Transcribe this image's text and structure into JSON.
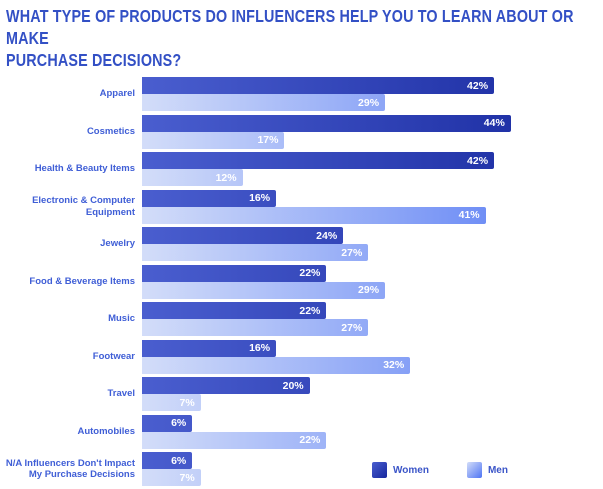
{
  "page": {
    "background": "#ffffff"
  },
  "title_lines": [
    "WHAT TYPE OF PRODUCTS DO INFLUENCERS HELP YOU TO LEARN ABOUT OR MAKE",
    "PURCHASE DECISIONS?"
  ],
  "colors": {
    "title_text": "#3350c5",
    "category_text": "#3f5ed6",
    "legend_text": "#3b55c8",
    "value_text": "#ffffff",
    "women_bar_start": "#4a5ecf",
    "women_bar_end": "#16279d",
    "men_bar_start": "#d3ddf9",
    "men_bar_end": "#4e74f4"
  },
  "chart_data": {
    "type": "bar",
    "orientation": "horizontal",
    "title": "WHAT TYPE OF PRODUCTS DO INFLUENCERS HELP YOU TO LEARN ABOUT OR MAKE PURCHASE DECISIONS?",
    "categories": [
      "Apparel",
      "Cosmetics",
      "Health & Beauty Items",
      "Electronic & Computer Equipment",
      "Jewelry",
      "Food & Beverage Items",
      "Music",
      "Footwear",
      "Travel",
      "Automobiles",
      "N/A Influencers Don't Impact My Purchase Decisions"
    ],
    "series": [
      {
        "name": "Women",
        "color_start": "#4a5ecf",
        "color_end": "#16279d",
        "values": [
          42,
          44,
          42,
          16,
          24,
          22,
          22,
          16,
          20,
          6,
          6
        ]
      },
      {
        "name": "Men",
        "color_start": "#d3ddf9",
        "color_end": "#4e74f4",
        "values": [
          29,
          17,
          12,
          41,
          27,
          29,
          27,
          32,
          7,
          22,
          7
        ]
      }
    ],
    "value_suffix": "%",
    "value_labels": "inside-end",
    "xlim": [
      0,
      55
    ],
    "grid": false,
    "legend_position": "bottom-right"
  }
}
